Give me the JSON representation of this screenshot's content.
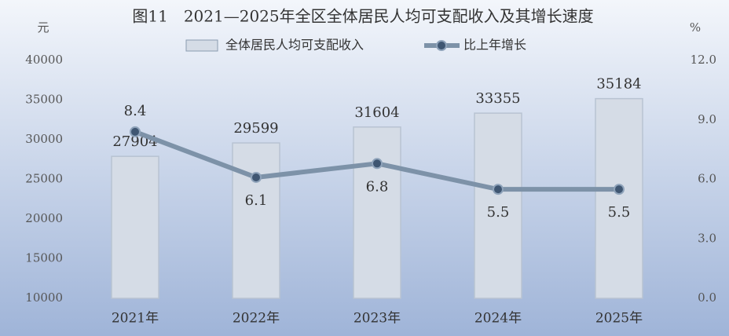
{
  "chart_data": {
    "type": "bar-line",
    "title": "图11　2021—2025年全区全体居民人均可支配收入及其增长速度",
    "ylabel": "元",
    "y2label": "%",
    "categories": [
      "2021年",
      "2022年",
      "2023年",
      "2024年",
      "2025年"
    ],
    "series": [
      {
        "name": "全体居民人均可支配收入",
        "type": "bar",
        "color": "#d5dce6",
        "values": [
          27904,
          29599,
          31604,
          33355,
          35184
        ]
      },
      {
        "name": "比上年增长",
        "type": "line",
        "axis": "y2",
        "color": "#7d92a8",
        "values": [
          8.4,
          6.1,
          6.8,
          5.5,
          5.5
        ]
      }
    ],
    "ylim": [
      10000,
      40000
    ],
    "yticks": [
      10000,
      15000,
      20000,
      25000,
      30000,
      35000,
      40000
    ],
    "y2lim": [
      0,
      12
    ],
    "y2ticks": [
      {
        "value": 0,
        "label": "0.0"
      },
      {
        "value": 3,
        "label": "3.0"
      },
      {
        "value": 6,
        "label": "6.0"
      },
      {
        "value": 9,
        "label": "9.0"
      },
      {
        "value": 12,
        "label": "12.0"
      }
    ],
    "legend": "top"
  }
}
